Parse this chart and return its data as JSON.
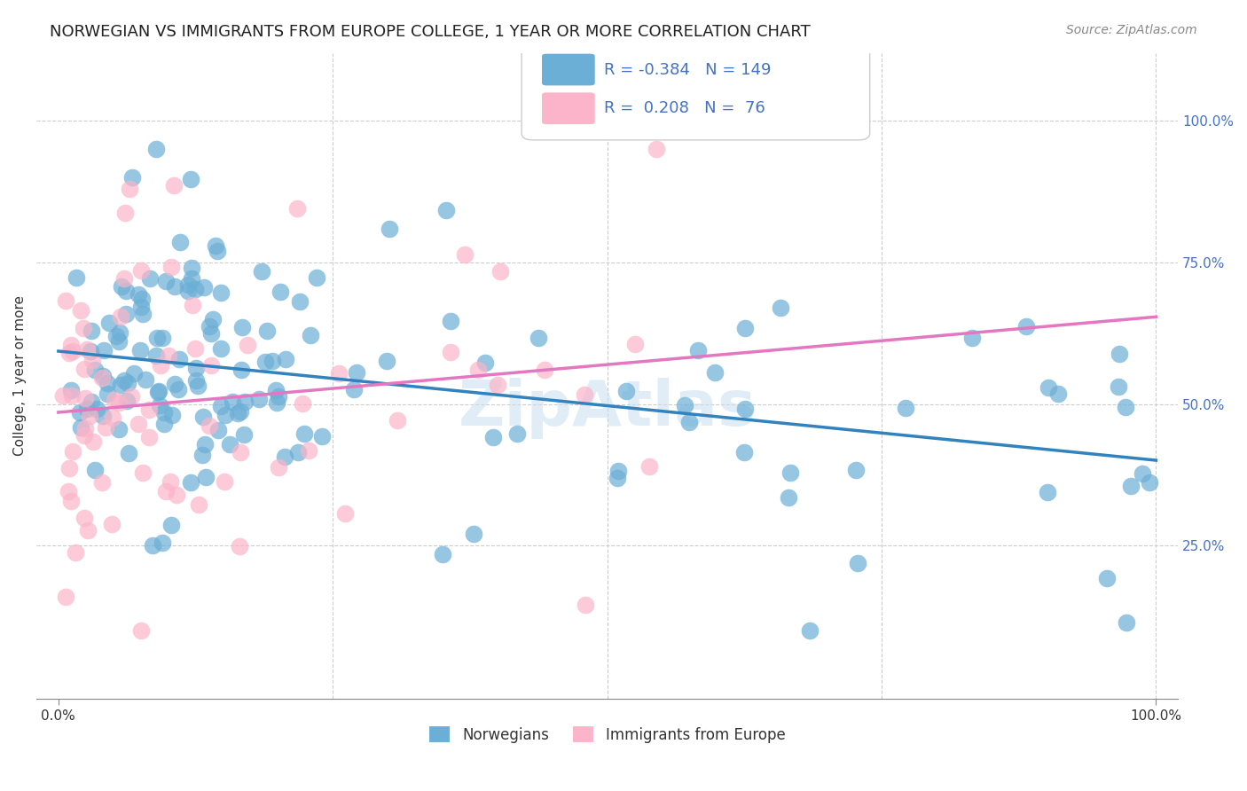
{
  "title": "NORWEGIAN VS IMMIGRANTS FROM EUROPE COLLEGE, 1 YEAR OR MORE CORRELATION CHART",
  "source": "Source: ZipAtlas.com",
  "ylabel": "College, 1 year or more",
  "yticklabels_right": [
    "25.0%",
    "50.0%",
    "75.0%",
    "100.0%"
  ],
  "legend_labels": [
    "Norwegians",
    "Immigrants from Europe"
  ],
  "blue_color": "#6baed6",
  "pink_color": "#fbb4c9",
  "blue_line_color": "#3182bd",
  "pink_line_color": "#e377c2",
  "r_blue": -0.384,
  "n_blue": 149,
  "r_pink": 0.208,
  "n_pink": 76,
  "watermark": "ZipAtlas",
  "background_color": "#ffffff",
  "grid_color": "#cccccc",
  "title_fontsize": 13,
  "label_fontsize": 11,
  "tick_fontsize": 11,
  "legend_fontsize": 13,
  "source_fontsize": 10,
  "blue_scatter_seed": 42,
  "pink_scatter_seed": 99
}
